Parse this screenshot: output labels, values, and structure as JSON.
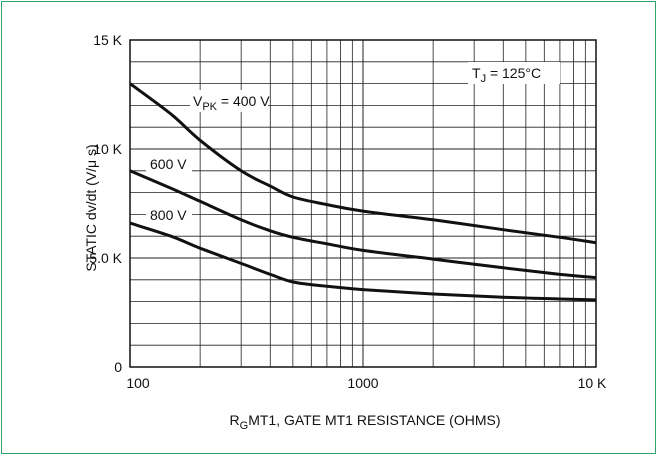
{
  "chart_data": {
    "type": "line",
    "x_scale": "log",
    "xlim": [
      100,
      10000
    ],
    "ylim": [
      0,
      15000
    ],
    "grid": true,
    "x_tick_labels": [
      "100",
      "1000",
      "10 K"
    ],
    "x_tick_values": [
      100,
      1000,
      10000
    ],
    "y_tick_labels": [
      "0",
      "5.0 K",
      "10 K",
      "15 K"
    ],
    "y_tick_values": [
      0,
      5000,
      10000,
      15000
    ],
    "xlabel_main": "R",
    "xlabel_sub": "G",
    "xlabel_rest": "MT1, GATE MT1 RESISTANCE (OHMS)",
    "ylabel": "STATIC dv/dt (V/μ s)",
    "annotation": {
      "prefix": "T",
      "sub": "J",
      "suffix": " = 125°C"
    },
    "series": [
      {
        "name": "V",
        "name_sub": "PK",
        "name_suffix": " = 400 V",
        "x": [
          100,
          150,
          200,
          300,
          400,
          500,
          700,
          1000,
          2000,
          4000,
          7000,
          10000
        ],
        "values": [
          13000,
          11600,
          10400,
          9000,
          8300,
          7800,
          7450,
          7150,
          6750,
          6300,
          5950,
          5700
        ]
      },
      {
        "name": "600 V",
        "x": [
          100,
          150,
          200,
          300,
          400,
          500,
          700,
          1000,
          2000,
          4000,
          7000,
          10000
        ],
        "values": [
          9000,
          8200,
          7600,
          6750,
          6250,
          5950,
          5650,
          5350,
          4950,
          4550,
          4250,
          4100
        ]
      },
      {
        "name": "800 V",
        "x": [
          100,
          150,
          200,
          300,
          400,
          500,
          700,
          1000,
          2000,
          4000,
          7000,
          10000
        ],
        "values": [
          6600,
          6000,
          5450,
          4750,
          4250,
          3900,
          3700,
          3550,
          3350,
          3200,
          3120,
          3080
        ]
      }
    ]
  }
}
